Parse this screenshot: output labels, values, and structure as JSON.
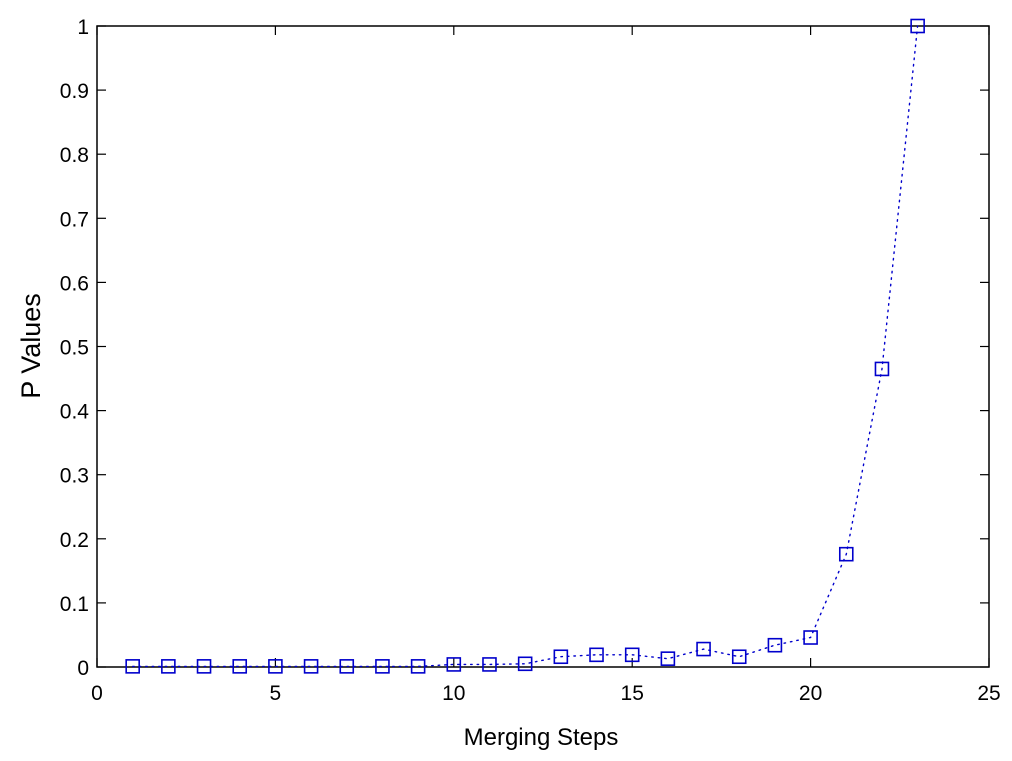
{
  "chart_data": {
    "type": "line",
    "title": "",
    "xlabel": "Merging Steps",
    "ylabel": "P Values",
    "xlim": [
      0,
      25
    ],
    "ylim": [
      0,
      1
    ],
    "xticks": [
      0,
      5,
      10,
      15,
      20,
      25
    ],
    "yticks": [
      0,
      0.1,
      0.2,
      0.3,
      0.4,
      0.5,
      0.6,
      0.7,
      0.8,
      0.9,
      1
    ],
    "grid": false,
    "legend": "none",
    "series": [
      {
        "marker": "square",
        "line_style": "dotted",
        "color": "#0000cc",
        "x": [
          1,
          2,
          3,
          4,
          5,
          6,
          7,
          8,
          9,
          10,
          11,
          12,
          13,
          14,
          15,
          16,
          17,
          18,
          19,
          20,
          21,
          22,
          23
        ],
        "y": [
          0.001,
          0.001,
          0.001,
          0.001,
          0.001,
          0.001,
          0.001,
          0.001,
          0.001,
          0.004,
          0.004,
          0.005,
          0.016,
          0.019,
          0.019,
          0.013,
          0.028,
          0.016,
          0.034,
          0.046,
          0.176,
          0.465,
          1.0
        ]
      }
    ]
  }
}
